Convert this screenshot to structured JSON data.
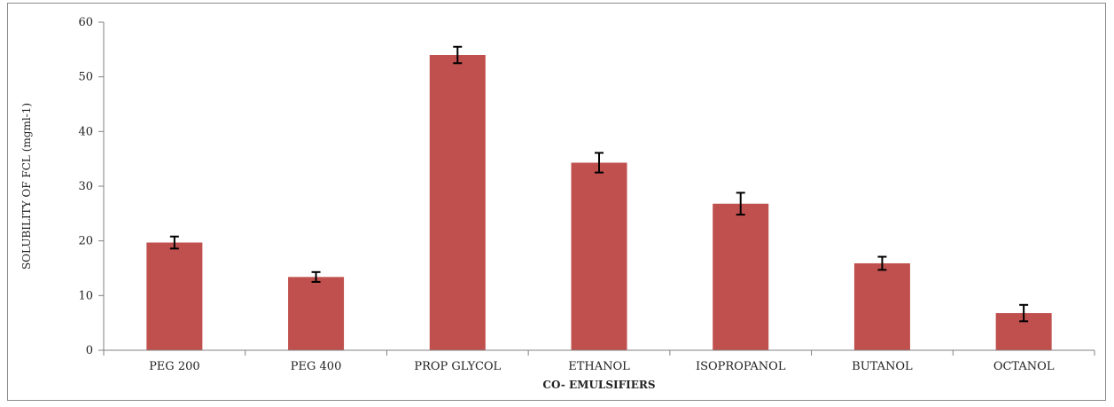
{
  "chart_data": {
    "type": "bar",
    "title": "",
    "xlabel": "CO- EMULSIFIERS",
    "ylabel": "SOLUBILITY OF FCL  (mgml-1)",
    "categories": [
      "PEG 200",
      "PEG 400",
      "PROP GLYCOL",
      "ETHANOL",
      "ISOPROPANOL",
      "BUTANOL",
      "OCTANOL"
    ],
    "values": [
      19.7,
      13.4,
      54.0,
      34.3,
      26.8,
      15.9,
      6.8
    ],
    "errors": [
      1.1,
      0.9,
      1.5,
      1.8,
      2.0,
      1.2,
      1.5
    ],
    "ylim": [
      0,
      60
    ],
    "yticks": [
      0,
      10,
      20,
      30,
      40,
      50,
      60
    ],
    "grid": false,
    "legend": "none",
    "bar_color": "#c0504d"
  }
}
